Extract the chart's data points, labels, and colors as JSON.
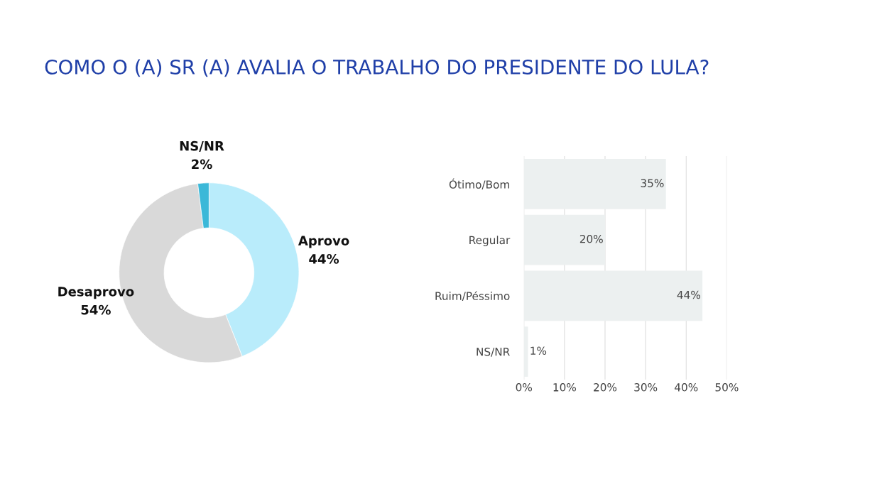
{
  "chart_data": [
    {
      "type": "donut",
      "title": "COMO O (A) SR (A) AVALIA O TRABALHO DO PRESIDENTE DO LULA?",
      "categories": [
        "Aprovo",
        "Desaprovo",
        "NS/NR"
      ],
      "values": [
        44,
        54,
        2
      ],
      "colors": [
        "#b9ecfb",
        "#d9d9d9",
        "#3bb8d8"
      ],
      "value_labels": [
        "44%",
        "54%",
        "2%"
      ]
    },
    {
      "type": "bar",
      "orientation": "horizontal",
      "categories": [
        "Ótimo/Bom",
        "Regular",
        "Ruim/Péssimo",
        "NS/NR"
      ],
      "values": [
        35,
        20,
        44,
        1
      ],
      "color": "#ecf0f0",
      "value_labels": [
        "35%",
        "20%",
        "44%",
        "1%"
      ],
      "xlim": [
        0,
        50
      ],
      "xticks": [
        {
          "value": 0,
          "label": "0%"
        },
        {
          "value": 10,
          "label": "10%"
        },
        {
          "value": 20,
          "label": "20%"
        },
        {
          "value": 30,
          "label": "30%"
        },
        {
          "value": 40,
          "label": "40%"
        },
        {
          "value": 50,
          "label": "50%"
        }
      ],
      "grid": "x"
    }
  ]
}
